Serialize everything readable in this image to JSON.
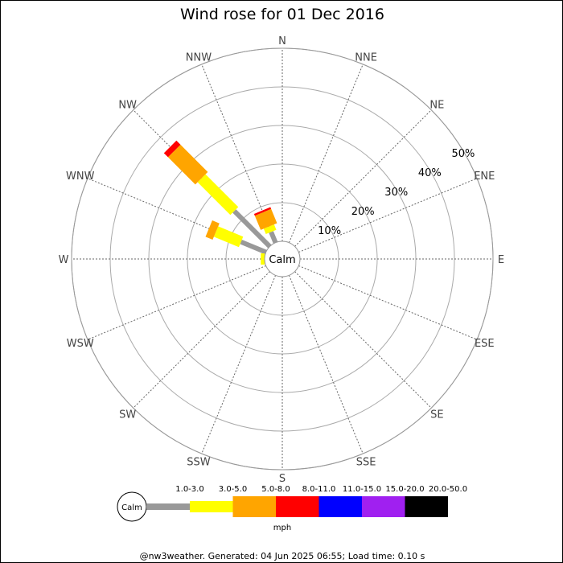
{
  "chart_data": {
    "type": "wind-rose",
    "title": "Wind rose for 01 Dec 2016",
    "directions": [
      "N",
      "NNE",
      "NE",
      "ENE",
      "E",
      "ESE",
      "SE",
      "SSE",
      "S",
      "SSW",
      "SW",
      "WSW",
      "W",
      "WNW",
      "NW",
      "NNW"
    ],
    "radial_ticks": [
      "10%",
      "20%",
      "30%",
      "40%",
      "50%"
    ],
    "radial_max": 50,
    "calm_label": "Calm",
    "unit": "mph",
    "speed_bins": [
      {
        "label": "1.0-3.0",
        "color": "#999999"
      },
      {
        "label": "3.0-5.0",
        "color": "#ffff00"
      },
      {
        "label": "5.0-8.0",
        "color": "#ffa500"
      },
      {
        "label": "8.0-11.0",
        "color": "#ff0000"
      },
      {
        "label": "11.0-15.0",
        "color": "#0000ff"
      },
      {
        "label": "15.0-20.0",
        "color": "#a020f0"
      },
      {
        "label": "20.0-50.0",
        "color": "#000000"
      }
    ],
    "series": [
      {
        "direction": "NW",
        "values": [
          13,
          12,
          10,
          1.5,
          0,
          0,
          0
        ]
      },
      {
        "direction": "WNW",
        "values": [
          7,
          7,
          2,
          0,
          0,
          0,
          0
        ]
      },
      {
        "direction": "NNW",
        "values": [
          3,
          1.5,
          4,
          0.5,
          0,
          0,
          0
        ]
      },
      {
        "direction": "W",
        "values": [
          0,
          1,
          0,
          0,
          0,
          0,
          0
        ]
      }
    ]
  },
  "footer": "@nw3weather. Generated: 04 Jun 2025 06:55; Load time: 0.10 s"
}
